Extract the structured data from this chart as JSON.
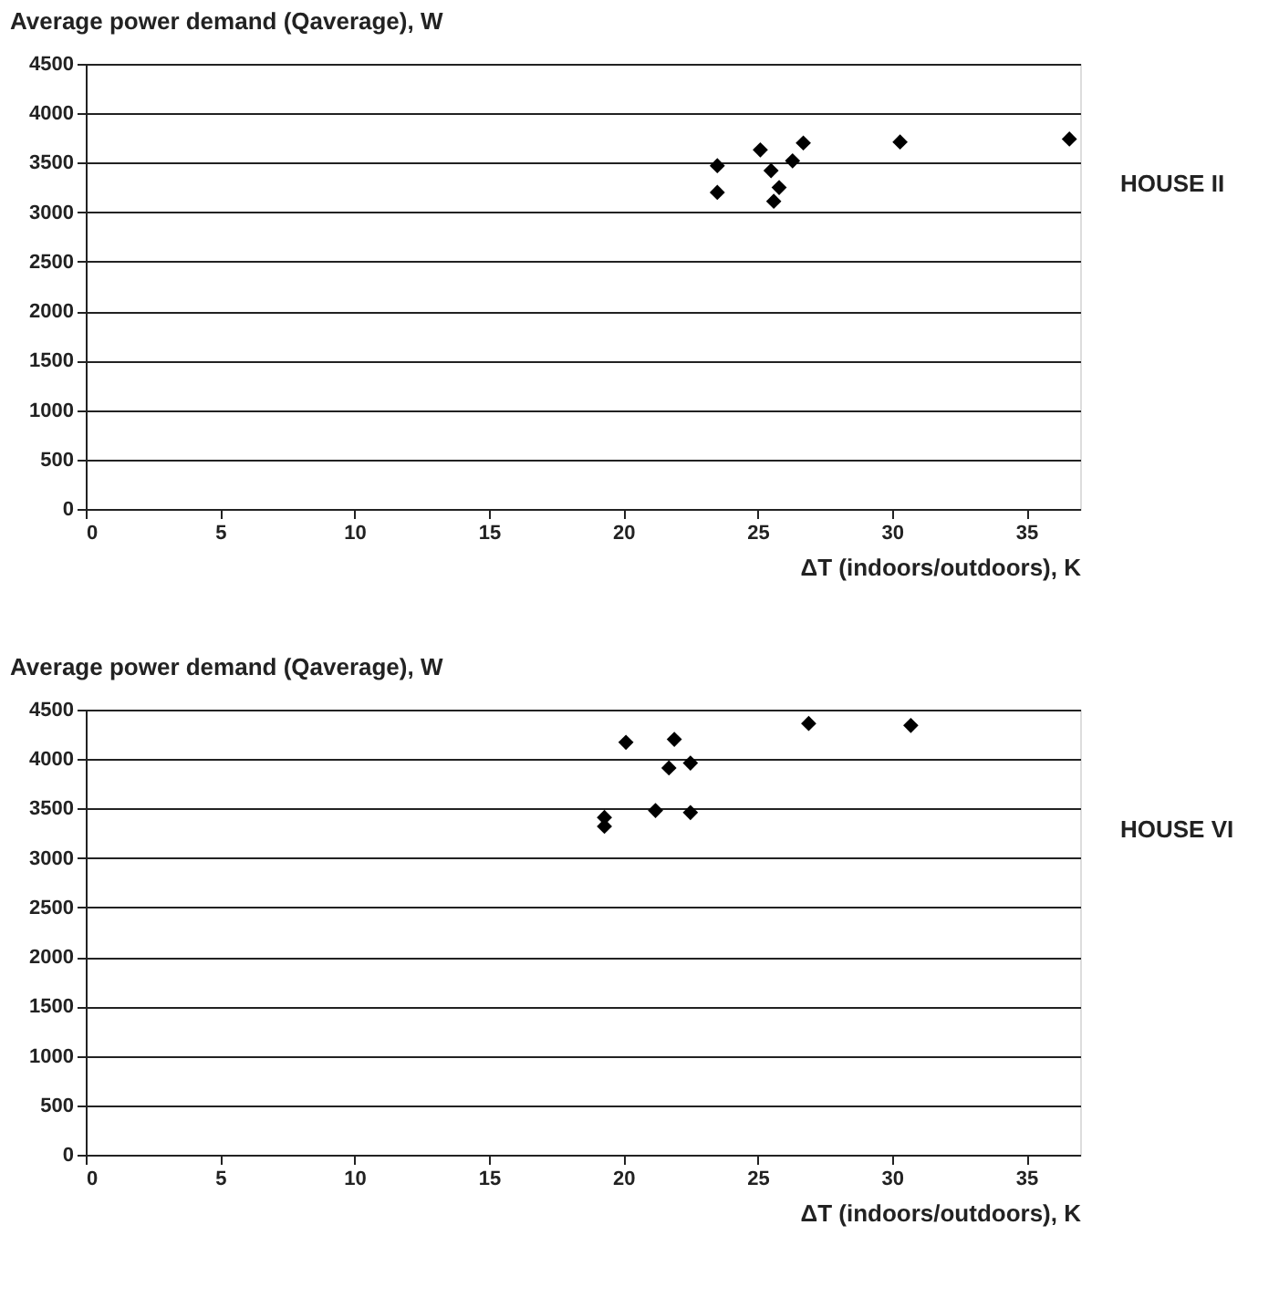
{
  "chart_data": [
    {
      "type": "scatter",
      "ylabel": "Average power demand (Qaverage), W",
      "xlabel": "ΔT (indoors/outdoors), K",
      "annotations": [
        "HOUSE II"
      ],
      "x": [
        23.5,
        23.5,
        25.1,
        25.5,
        26.3,
        26.7,
        25.8,
        25.6,
        30.3,
        36.6
      ],
      "values": [
        3470,
        3200,
        3630,
        3420,
        3520,
        3700,
        3250,
        3110,
        3710,
        3740
      ],
      "color": "#000000",
      "marker": "diamond",
      "xlim": [
        0,
        37
      ],
      "xticks": [
        0,
        5,
        10,
        15,
        20,
        25,
        30,
        35
      ],
      "ylim": [
        0,
        4500
      ],
      "yticks": [
        0,
        500,
        1000,
        1500,
        2000,
        2500,
        3000,
        3500,
        4000,
        4500
      ],
      "grid": "y"
    },
    {
      "type": "scatter",
      "ylabel": "Average power demand (Qaverage), W",
      "xlabel": "ΔT (indoors/outdoors), K",
      "annotations": [
        "HOUSE VI"
      ],
      "x": [
        20.1,
        21.9,
        21.7,
        22.5,
        21.2,
        22.5,
        19.3,
        19.3,
        26.9,
        30.7
      ],
      "values": [
        4170,
        4200,
        3910,
        3960,
        3480,
        3460,
        3410,
        3320,
        4360,
        4340
      ],
      "color": "#000000",
      "marker": "diamond",
      "xlim": [
        0,
        37
      ],
      "xticks": [
        0,
        5,
        10,
        15,
        20,
        25,
        30,
        35
      ],
      "ylim": [
        0,
        4500
      ],
      "yticks": [
        0,
        500,
        1000,
        1500,
        2000,
        2500,
        3000,
        3500,
        4000,
        4500
      ],
      "grid": "y"
    }
  ]
}
